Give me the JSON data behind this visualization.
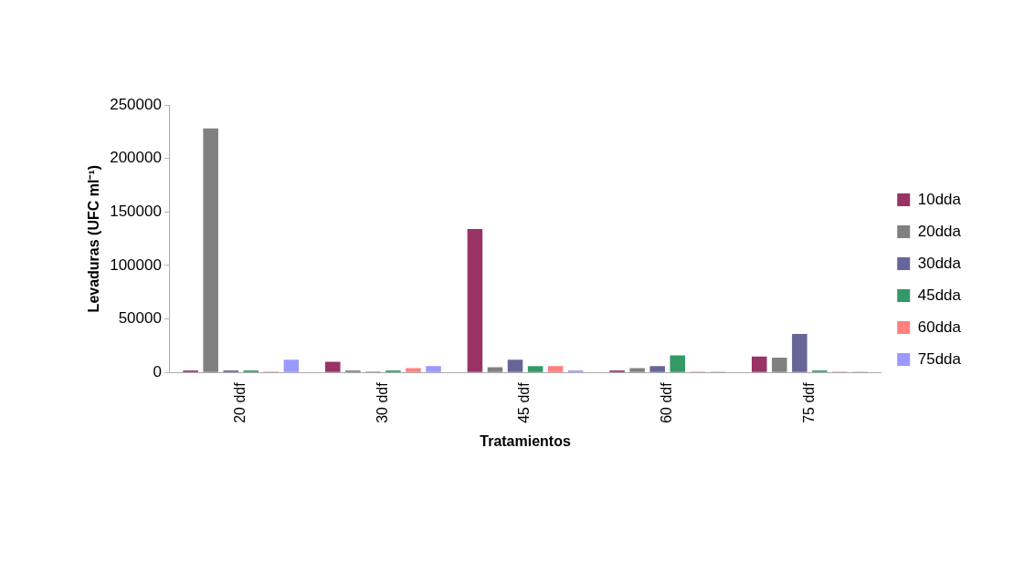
{
  "chart_data": {
    "type": "bar",
    "xlabel": "Tratamientos",
    "ylabel": "Levaduras (UFC ml⁻¹)",
    "categories": [
      "20 ddf",
      "30 ddf",
      "45 ddf",
      "60 ddf",
      "75 ddf"
    ],
    "series": [
      {
        "name": "10dda",
        "color": "#993366",
        "values": [
          2000,
          10000,
          134000,
          2000,
          15000
        ]
      },
      {
        "name": "20dda",
        "color": "#808080",
        "values": [
          228000,
          2000,
          5000,
          4000,
          14000
        ]
      },
      {
        "name": "30dda",
        "color": "#666699",
        "values": [
          2000,
          1000,
          12000,
          6000,
          36000
        ]
      },
      {
        "name": "45dda",
        "color": "#339966",
        "values": [
          2000,
          2000,
          6000,
          16000,
          2000
        ]
      },
      {
        "name": "60dda",
        "color": "#ff8080",
        "values": [
          1000,
          4000,
          6000,
          1000,
          1000
        ]
      },
      {
        "name": "75dda",
        "color": "#9999ff",
        "values": [
          12000,
          6000,
          2000,
          1000,
          1000
        ]
      }
    ],
    "ylim": [
      0,
      250000
    ],
    "yticks": [
      0,
      50000,
      100000,
      150000,
      200000,
      250000
    ],
    "grid": false,
    "legend": "right"
  }
}
